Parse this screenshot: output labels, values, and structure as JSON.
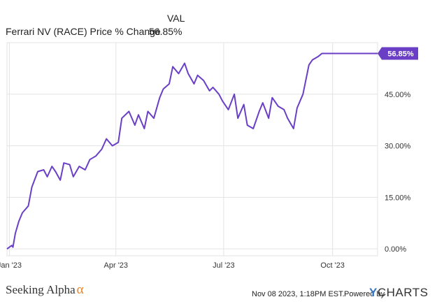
{
  "legend": {
    "header": "VAL",
    "series_name": "Ferrari NV (RACE) Price % Change",
    "series_value": "56.85%"
  },
  "colors": {
    "line": "#6a3fc6",
    "grid": "#e3e3e3",
    "label_bg": "#6a3fc6"
  },
  "footer": {
    "brand": "Seeking Alpha",
    "brand_symbol": "α",
    "date": "Nov 08 2023, 1:18PM EST.",
    "powered_by": "Powered by",
    "provider": "CHARTS",
    "provider_initial": "Y"
  },
  "chart_data": {
    "type": "line",
    "title": "",
    "xlabel": "",
    "ylabel": "",
    "x_ticks": [
      "Jan '23",
      "Apr '23",
      "Jul '23",
      "Oct '23"
    ],
    "y_ticks": [
      "0.00%",
      "15.00%",
      "30.00%",
      "45.00%"
    ],
    "y_tick_values": [
      0,
      15,
      30,
      45
    ],
    "ylim": [
      -2,
      60
    ],
    "xlim": [
      "2022-12-30",
      "2023-11-08"
    ],
    "grid": true,
    "end_label": "56.85%",
    "series": [
      {
        "name": "Ferrari NV (RACE) Price % Change",
        "x": [
          "2022-12-30",
          "2023-01-03",
          "2023-01-04",
          "2023-01-05",
          "2023-01-06",
          "2023-01-09",
          "2023-01-12",
          "2023-01-17",
          "2023-01-20",
          "2023-01-25",
          "2023-01-30",
          "2023-02-02",
          "2023-02-06",
          "2023-02-09",
          "2023-02-13",
          "2023-02-16",
          "2023-02-21",
          "2023-02-24",
          "2023-03-01",
          "2023-03-06",
          "2023-03-10",
          "2023-03-15",
          "2023-03-20",
          "2023-03-24",
          "2023-03-29",
          "2023-04-03",
          "2023-04-06",
          "2023-04-12",
          "2023-04-17",
          "2023-04-20",
          "2023-04-25",
          "2023-04-28",
          "2023-05-03",
          "2023-05-08",
          "2023-05-11",
          "2023-05-16",
          "2023-05-19",
          "2023-05-24",
          "2023-05-29",
          "2023-06-01",
          "2023-06-06",
          "2023-06-09",
          "2023-06-14",
          "2023-06-19",
          "2023-06-22",
          "2023-06-27",
          "2023-06-30",
          "2023-07-05",
          "2023-07-10",
          "2023-07-13",
          "2023-07-18",
          "2023-07-21",
          "2023-07-26",
          "2023-07-31",
          "2023-08-03",
          "2023-08-08",
          "2023-08-11",
          "2023-08-16",
          "2023-08-21",
          "2023-08-24",
          "2023-08-29",
          "2023-09-01",
          "2023-09-06",
          "2023-09-11",
          "2023-09-14",
          "2023-09-19",
          "2023-09-22",
          "2023-09-27",
          "2023-10-02",
          "2023-10-05",
          "2023-10-10",
          "2023-10-13",
          "2023-10-18",
          "2023-10-23",
          "2023-10-26",
          "2023-10-31",
          "2023-11-02",
          "2023-11-06",
          "2023-11-08"
        ],
        "values": [
          0.0,
          1.0,
          0.5,
          2.5,
          4.5,
          8.0,
          10.5,
          12.5,
          18.0,
          22.5,
          23.0,
          21.0,
          24.0,
          22.5,
          20.0,
          25.0,
          24.5,
          21.0,
          24.0,
          23.0,
          26.0,
          27.0,
          29.0,
          32.0,
          30.0,
          31.0,
          38.0,
          40.0,
          36.0,
          39.0,
          35.0,
          40.0,
          38.0,
          44.0,
          46.5,
          48.0,
          53.0,
          51.0,
          54.0,
          51.0,
          48.0,
          50.5,
          49.0,
          46.0,
          47.0,
          45.0,
          43.0,
          40.5,
          45.0,
          38.0,
          42.0,
          36.0,
          35.0,
          40.0,
          42.5,
          38.0,
          44.0,
          41.5,
          40.5,
          38.0,
          35.0,
          41.0,
          45.0,
          53.5,
          55.0,
          56.0,
          56.85,
          56.85,
          56.85,
          56.85,
          56.85,
          56.85,
          56.85,
          56.85,
          56.85,
          56.85,
          56.85,
          56.85,
          56.85
        ]
      }
    ]
  }
}
